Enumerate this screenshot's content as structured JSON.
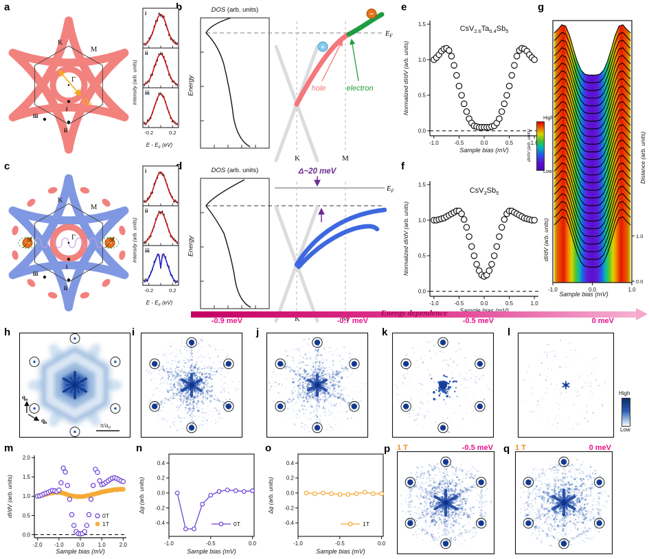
{
  "palette": {
    "salmon": "#F2827E",
    "blue_star": "#8098E2",
    "magenta": "#E9118C",
    "orange_accent": "#F5A020",
    "purple_series": "#6B3FD4",
    "orange_series": "#F5A833",
    "green_band": "#209C40",
    "pink_band": "#F4777C",
    "blue_band": "#3E68E0",
    "qpi_blue": "#2A5AB0"
  },
  "panel_labels": {
    "a": "a",
    "b": "b",
    "c": "c",
    "d": "d",
    "e": "e",
    "f": "f",
    "g": "g",
    "h": "h",
    "i": "i",
    "j": "j",
    "k": "k",
    "l": "l",
    "m": "m",
    "n": "n",
    "o": "o",
    "p": "p",
    "q": "q"
  },
  "panel_a": {
    "k": "K",
    "m": "M",
    "gamma": "Γ",
    "q": [
      "Q",
      "p"
    ],
    "pt1": "i",
    "pt2": "ii",
    "pt3": "iii"
  },
  "panel_c": {
    "k": "K",
    "m": "M",
    "gamma": "Γ",
    "pt1": "i",
    "pt2": "ii",
    "pt3": "iii",
    "minus_left": "−",
    "minus_right": "−"
  },
  "insets": {
    "ylabel": "Intensity (arb. units)",
    "xtick_neg": "-0.2",
    "xtick_pos": "0.2",
    "xlabel": [
      "E - E",
      "F",
      " (eV)"
    ],
    "labels": [
      "i",
      "ii",
      "iii"
    ],
    "a_curves": [
      "single-red",
      "single-red",
      "single-red"
    ],
    "c_curves": [
      "single-red",
      "single-red",
      "split-blue"
    ]
  },
  "panel_b": {
    "dos_italic": "DOS",
    "dos_rest": " (arb. units)",
    "energy": "Energy",
    "ef": [
      "E",
      "F"
    ],
    "k": "K",
    "m": "M",
    "hole": "hole",
    "electron": "electron",
    "plus": "+",
    "minus": "−"
  },
  "panel_d": {
    "dos_italic": "DOS",
    "dos_rest": " (arb. units)",
    "energy": "Energy",
    "gap": "Δ~20 meV",
    "ef": [
      "E",
      "F"
    ],
    "k": "K",
    "m": "M"
  },
  "panel_e": {
    "title": [
      "CsV",
      "2.6",
      "Ta",
      "0.4",
      "Sb",
      "5"
    ],
    "ylabel": "Normalized dI/dV (arb. units)",
    "xlabel": "Sample bias (mV)"
  },
  "panel_f": {
    "title": [
      "CsV",
      "3",
      "Sb",
      "5"
    ],
    "ylabel": "Normalized dI/dV (arb. units)",
    "xlabel": "Sample bias (mV)"
  },
  "panel_g": {
    "ylabel_left": "dI/dV (arb. units)",
    "ylabel_right": "Distance (arb. units)",
    "xlabel": "Sample bias (mV)",
    "right_tick_labels": [
      "1.0",
      "0.0"
    ],
    "colorbar_label": "dI/dV (arb. units)",
    "high": "High",
    "low": "Low"
  },
  "banner": {
    "text": "Energy dependence"
  },
  "panel_h": {
    "qa": [
      "q",
      "a"
    ],
    "qb": [
      "q",
      "b"
    ],
    "scalebar": [
      "π/a",
      "0"
    ]
  },
  "qpi_energies": {
    "i": "-0.9 meV",
    "j": "-0.7 meV",
    "k": "-0.5 meV",
    "l": "0 meV",
    "p": "-0.5 meV",
    "q": "0 meV"
  },
  "field_labels": {
    "p": "1 T",
    "q": "1 T"
  },
  "qpi_colorbar": {
    "high": "High",
    "low": "Low"
  },
  "panel_m": {
    "ylabel": "dI/dV (arb. units)",
    "xlabel": "Sample bias (mV)",
    "legend": [
      "0T",
      "1T"
    ]
  },
  "panel_n": {
    "ylabel": "Δg (arb. units)",
    "xlabel": "Sample bias (mV)",
    "legend": "0T"
  },
  "panel_o": {
    "ylabel": "Δg (arb. units)",
    "xlabel": "Sample bias (mV)",
    "legend": "1T"
  },
  "qpi_params": {
    "h": {
      "style": "simulation"
    },
    "i": {
      "style": "experiment",
      "seed": 11,
      "cloud": 520,
      "spread": 0.3,
      "spokes": true,
      "ring": false,
      "star": 16,
      "blob": 0,
      "bragg": true,
      "sparse": 380
    },
    "j": {
      "style": "experiment",
      "seed": 23,
      "cloud": 500,
      "spread": 0.32,
      "spokes": true,
      "ring": false,
      "star": 15,
      "blob": 0,
      "bragg": true,
      "sparse": 360
    },
    "k": {
      "style": "experiment",
      "seed": 37,
      "cloud": 760,
      "spread": 0.17,
      "spokes": false,
      "ring": false,
      "star": 0,
      "blob": 6,
      "bragg": true,
      "sparse": 200
    },
    "l": {
      "style": "experiment",
      "seed": 51,
      "cloud": 0,
      "spread": 0.2,
      "spokes": false,
      "ring": false,
      "star": 5,
      "blob": 0,
      "bragg": false,
      "sparse": 130
    },
    "p": {
      "style": "experiment",
      "seed": 67,
      "cloud": 620,
      "spread": 0.34,
      "spokes": true,
      "ring": true,
      "star": 18,
      "blob": 0,
      "bragg": true,
      "sparse": 520
    },
    "q": {
      "style": "experiment",
      "seed": 83,
      "cloud": 600,
      "spread": 0.34,
      "spokes": true,
      "ring": true,
      "star": 18,
      "blob": 0,
      "bragg": true,
      "sparse": 500
    }
  },
  "chart_data": [
    {
      "id": "e",
      "type": "scatter",
      "xlim": [
        -1.08,
        1.08
      ],
      "ylim": [
        -0.07,
        1.55
      ],
      "xticks": [
        -1,
        -0.5,
        0,
        0.5,
        1
      ],
      "xtick_labels": [
        "-1.0",
        "-0.5",
        "0.0",
        "0.5",
        "1.0"
      ],
      "yticks": [
        0,
        0.5,
        1,
        1.5
      ],
      "ytick_labels": [
        "0.0",
        "0.5",
        "1.0",
        "1.5"
      ],
      "zero_dash": true,
      "series": [
        {
          "name": "CsV2.6Ta0.4Sb5",
          "marker": "open",
          "color": "#111111",
          "r": 4.2,
          "x_start": -1,
          "x_step": 0.05,
          "y": [
            1.0,
            1.03,
            1.07,
            1.12,
            1.15,
            1.16,
            1.13,
            1.05,
            0.92,
            0.78,
            0.63,
            0.5,
            0.38,
            0.27,
            0.17,
            0.11,
            0.07,
            0.06,
            0.05,
            0.05,
            0.05,
            0.05,
            0.05,
            0.06,
            0.07,
            0.11,
            0.17,
            0.27,
            0.38,
            0.5,
            0.63,
            0.78,
            0.92,
            1.05,
            1.13,
            1.16,
            1.15,
            1.12,
            1.07,
            1.03,
            1.0
          ]
        }
      ]
    },
    {
      "id": "f",
      "type": "scatter",
      "xlim": [
        -1.08,
        1.08
      ],
      "ylim": [
        -0.07,
        1.55
      ],
      "xticks": [
        -1,
        -0.5,
        0,
        0.5,
        1
      ],
      "xtick_labels": [
        "-1.0",
        "-0.5",
        "0.0",
        "0.5",
        "1.0"
      ],
      "yticks": [
        0,
        0.5,
        1,
        1.5
      ],
      "ytick_labels": [
        "0.0",
        "0.5",
        "1.0",
        "1.5"
      ],
      "zero_dash": true,
      "series": [
        {
          "name": "CsV3Sb5",
          "marker": "open",
          "color": "#111111",
          "r": 4.2,
          "x_start": -1,
          "x_step": 0.05,
          "y": [
            1.0,
            1.0,
            1.01,
            1.02,
            1.03,
            1.05,
            1.07,
            1.09,
            1.11,
            1.13,
            1.13,
            1.09,
            1.01,
            0.9,
            0.77,
            0.63,
            0.5,
            0.38,
            0.29,
            0.23,
            0.21,
            0.23,
            0.29,
            0.38,
            0.5,
            0.63,
            0.77,
            0.9,
            1.01,
            1.09,
            1.13,
            1.13,
            1.11,
            1.09,
            1.07,
            1.05,
            1.03,
            1.02,
            1.01,
            1.0,
            1.0
          ]
        }
      ]
    },
    {
      "id": "g",
      "type": "waterfall",
      "n_curves": 26,
      "xlim": [
        -1,
        1
      ],
      "xticks": [
        -1,
        0,
        1
      ],
      "xtick_labels": [
        "-1.0",
        "0.0",
        "1.0"
      ],
      "profile_x_start": -1,
      "profile_x_step": 0.1,
      "profile_y": [
        0.97,
        1.05,
        1.15,
        1.12,
        0.92,
        0.62,
        0.35,
        0.15,
        0.06,
        0.04,
        0.04,
        0.04,
        0.06,
        0.15,
        0.35,
        0.62,
        0.92,
        1.12,
        1.15,
        1.05,
        0.97
      ]
    },
    {
      "id": "m",
      "type": "scatter",
      "xlim": [
        -2.15,
        2.15
      ],
      "ylim": [
        -0.08,
        2.06
      ],
      "xticks": [
        -2,
        -1,
        0,
        1,
        2
      ],
      "xtick_labels": [
        "-2.0",
        "-1.0",
        "0.0",
        "1.0",
        "2.0"
      ],
      "yticks": [
        0,
        0.5,
        1,
        1.5,
        2
      ],
      "ytick_labels": [
        "0.0",
        "0.5",
        "1.0",
        "1.5",
        "2.0"
      ],
      "zero_dash": true,
      "series": [
        {
          "name": "1T",
          "marker": "filled",
          "color": "#F5A833",
          "r": 3.6,
          "x_start": -2,
          "x_step": 0.1,
          "y": [
            1.0,
            1.01,
            1.02,
            1.04,
            1.05,
            1.07,
            1.08,
            1.09,
            1.1,
            1.1,
            1.1,
            1.09,
            1.08,
            1.06,
            1.04,
            1.02,
            1.01,
            1.0,
            0.99,
            0.99,
            0.99,
            0.99,
            1.0,
            1.01,
            1.02,
            1.03,
            1.05,
            1.06,
            1.08,
            1.09,
            1.11,
            1.12,
            1.13,
            1.14,
            1.15,
            1.16,
            1.17,
            1.17,
            1.18,
            1.18,
            1.18
          ]
        },
        {
          "name": "0T",
          "marker": "open",
          "color": "#6B3FD4",
          "r": 3.1,
          "x_start": -2,
          "x_step": 0.1,
          "y": [
            1.0,
            1.01,
            1.03,
            1.06,
            1.08,
            1.1,
            1.13,
            1.15,
            1.14,
            1.12,
            1.16,
            1.35,
            1.73,
            1.63,
            1.28,
            0.92,
            0.52,
            0.24,
            0.08,
            0.03,
            0.02,
            0.03,
            0.08,
            0.24,
            0.52,
            0.92,
            1.28,
            1.7,
            1.62,
            1.4,
            1.3,
            1.32,
            1.36,
            1.4,
            1.44,
            1.47,
            1.48,
            1.46,
            1.43,
            1.4,
            1.38
          ]
        }
      ]
    },
    {
      "id": "n",
      "type": "scatter",
      "box": true,
      "xlim": [
        -1.0,
        0.02
      ],
      "ylim": [
        -0.58,
        0.52
      ],
      "xticks": [
        -1,
        -0.5,
        0
      ],
      "xtick_labels": [
        "-1.0",
        "-0.5",
        "0.0"
      ],
      "yticks": [
        -0.4,
        -0.2,
        0,
        0.2,
        0.4
      ],
      "ytick_labels": [
        "-0.4",
        "-0.2",
        "0.0",
        "0.2",
        "0.4"
      ],
      "zero_dash": false,
      "series": [
        {
          "name": "0T",
          "marker": "open",
          "line": true,
          "color": "#6B3FD4",
          "r": 2.8,
          "x": [
            -0.9,
            -0.8,
            -0.7,
            -0.6,
            -0.5,
            -0.4,
            -0.3,
            -0.2,
            -0.1,
            0.0
          ],
          "y": [
            0.0,
            -0.48,
            -0.48,
            -0.15,
            -0.03,
            0.02,
            0.04,
            0.03,
            0.02,
            0.03
          ]
        }
      ]
    },
    {
      "id": "o",
      "type": "scatter",
      "box": true,
      "xlim": [
        -1.0,
        0.02
      ],
      "ylim": [
        -0.58,
        0.52
      ],
      "xticks": [
        -1,
        -0.5,
        0
      ],
      "xtick_labels": [
        "-1.0",
        "-0.5",
        "0.0"
      ],
      "yticks": [
        -0.4,
        -0.2,
        0,
        0.2,
        0.4
      ],
      "ytick_labels": [
        "-0.4",
        "-0.2",
        "0.0",
        "0.2",
        "0.4"
      ],
      "zero_dash": false,
      "series": [
        {
          "name": "1T",
          "marker": "open",
          "line": true,
          "color": "#F5A833",
          "r": 2.8,
          "x": [
            -0.9,
            -0.8,
            -0.7,
            -0.6,
            -0.5,
            -0.4,
            -0.3,
            -0.2,
            -0.1,
            0.0
          ],
          "y": [
            0.0,
            -0.01,
            0.0,
            -0.01,
            -0.02,
            -0.02,
            -0.01,
            0.01,
            -0.01,
            -0.01
          ]
        }
      ]
    }
  ]
}
